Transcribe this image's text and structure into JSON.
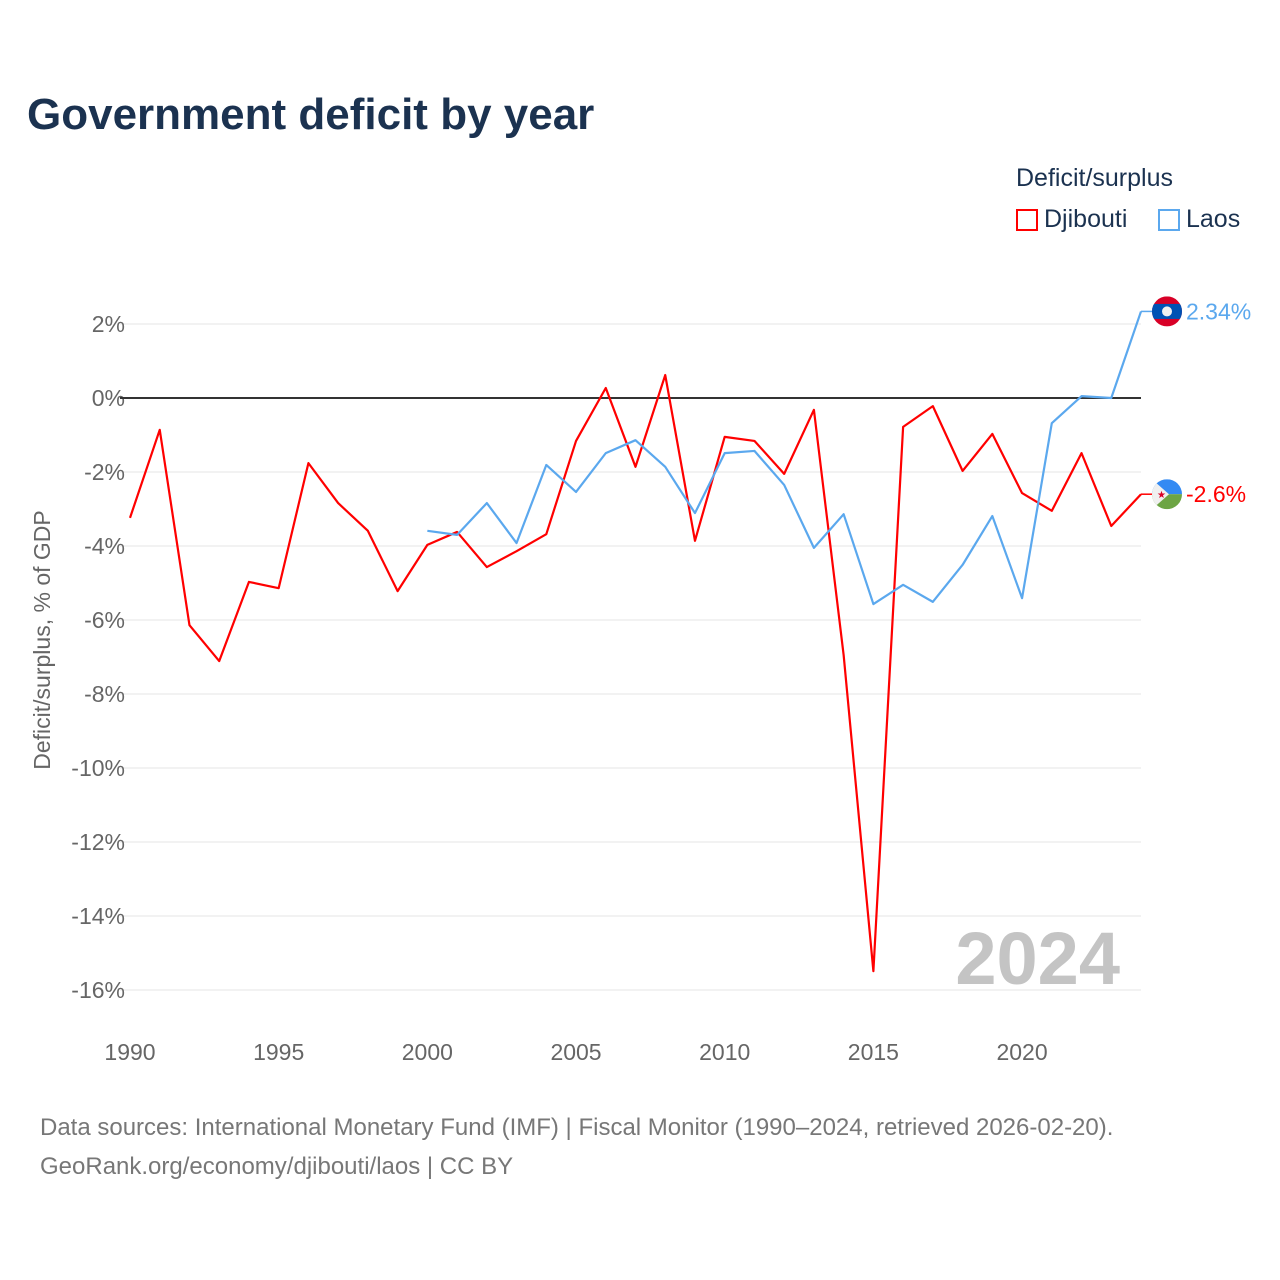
{
  "chart_data": {
    "type": "line",
    "title": "Government deficit by year",
    "ylabel": "Deficit/surplus, % of GDP",
    "xlabel": "",
    "ylim": [
      -16,
      2
    ],
    "xlim": [
      1990,
      2024
    ],
    "y_ticks": [
      2,
      0,
      -2,
      -4,
      -6,
      -8,
      -10,
      -12,
      -14,
      -16
    ],
    "y_tick_labels": [
      "2%",
      "0%",
      "-2%",
      "-4%",
      "-6%",
      "-8%",
      "-10%",
      "-12%",
      "-14%",
      "-16%"
    ],
    "x_ticks": [
      1990,
      1995,
      2000,
      2005,
      2010,
      2015,
      2020
    ],
    "x_tick_labels": [
      "1990",
      "1995",
      "2000",
      "2005",
      "2010",
      "2015",
      "2020"
    ],
    "grid": true,
    "legend_title": "Deficit/surplus",
    "legend_position": "top-right",
    "year_watermark": "2024",
    "series": [
      {
        "name": "Djibouti",
        "color": "#ff0000",
        "end_label": "-2.6%",
        "x": [
          1990,
          1991,
          1992,
          1993,
          1994,
          1995,
          1996,
          1997,
          1998,
          1999,
          2000,
          2001,
          2002,
          2003,
          2004,
          2005,
          2006,
          2007,
          2008,
          2009,
          2010,
          2011,
          2012,
          2013,
          2014,
          2015,
          2016,
          2017,
          2018,
          2019,
          2020,
          2021,
          2022,
          2023,
          2024
        ],
        "values": [
          -3.24,
          -0.86,
          -6.14,
          -7.11,
          -4.97,
          -5.14,
          -1.76,
          -2.84,
          -3.59,
          -5.22,
          -3.97,
          -3.62,
          -4.57,
          -4.14,
          -3.68,
          -1.16,
          0.27,
          -1.86,
          0.62,
          -3.86,
          -1.05,
          -1.16,
          -2.05,
          -0.32,
          -6.95,
          -15.49,
          -0.78,
          -0.22,
          -1.97,
          -0.97,
          -2.57,
          -3.05,
          -1.49,
          -3.46,
          -2.6
        ]
      },
      {
        "name": "Laos",
        "color": "#5ba8ee",
        "end_label": "2.34%",
        "x": [
          2000,
          2001,
          2002,
          2003,
          2004,
          2005,
          2006,
          2007,
          2008,
          2009,
          2010,
          2011,
          2012,
          2013,
          2014,
          2015,
          2016,
          2017,
          2018,
          2019,
          2020,
          2021,
          2022,
          2023,
          2024
        ],
        "values": [
          -3.59,
          -3.7,
          -2.84,
          -3.92,
          -1.81,
          -2.54,
          -1.49,
          -1.14,
          -1.86,
          -3.11,
          -1.49,
          -1.43,
          -2.35,
          -4.05,
          -3.14,
          -5.57,
          -5.05,
          -5.51,
          -4.51,
          -3.19,
          -5.41,
          -0.68,
          0.05,
          0.0,
          2.34
        ]
      }
    ]
  },
  "source": {
    "line1": "Data sources: International Monetary Fund (IMF) | Fiscal Monitor (1990–2024, retrieved 2026-02-20).",
    "line2": "GeoRank.org/economy/djibouti/laos | CC BY"
  }
}
